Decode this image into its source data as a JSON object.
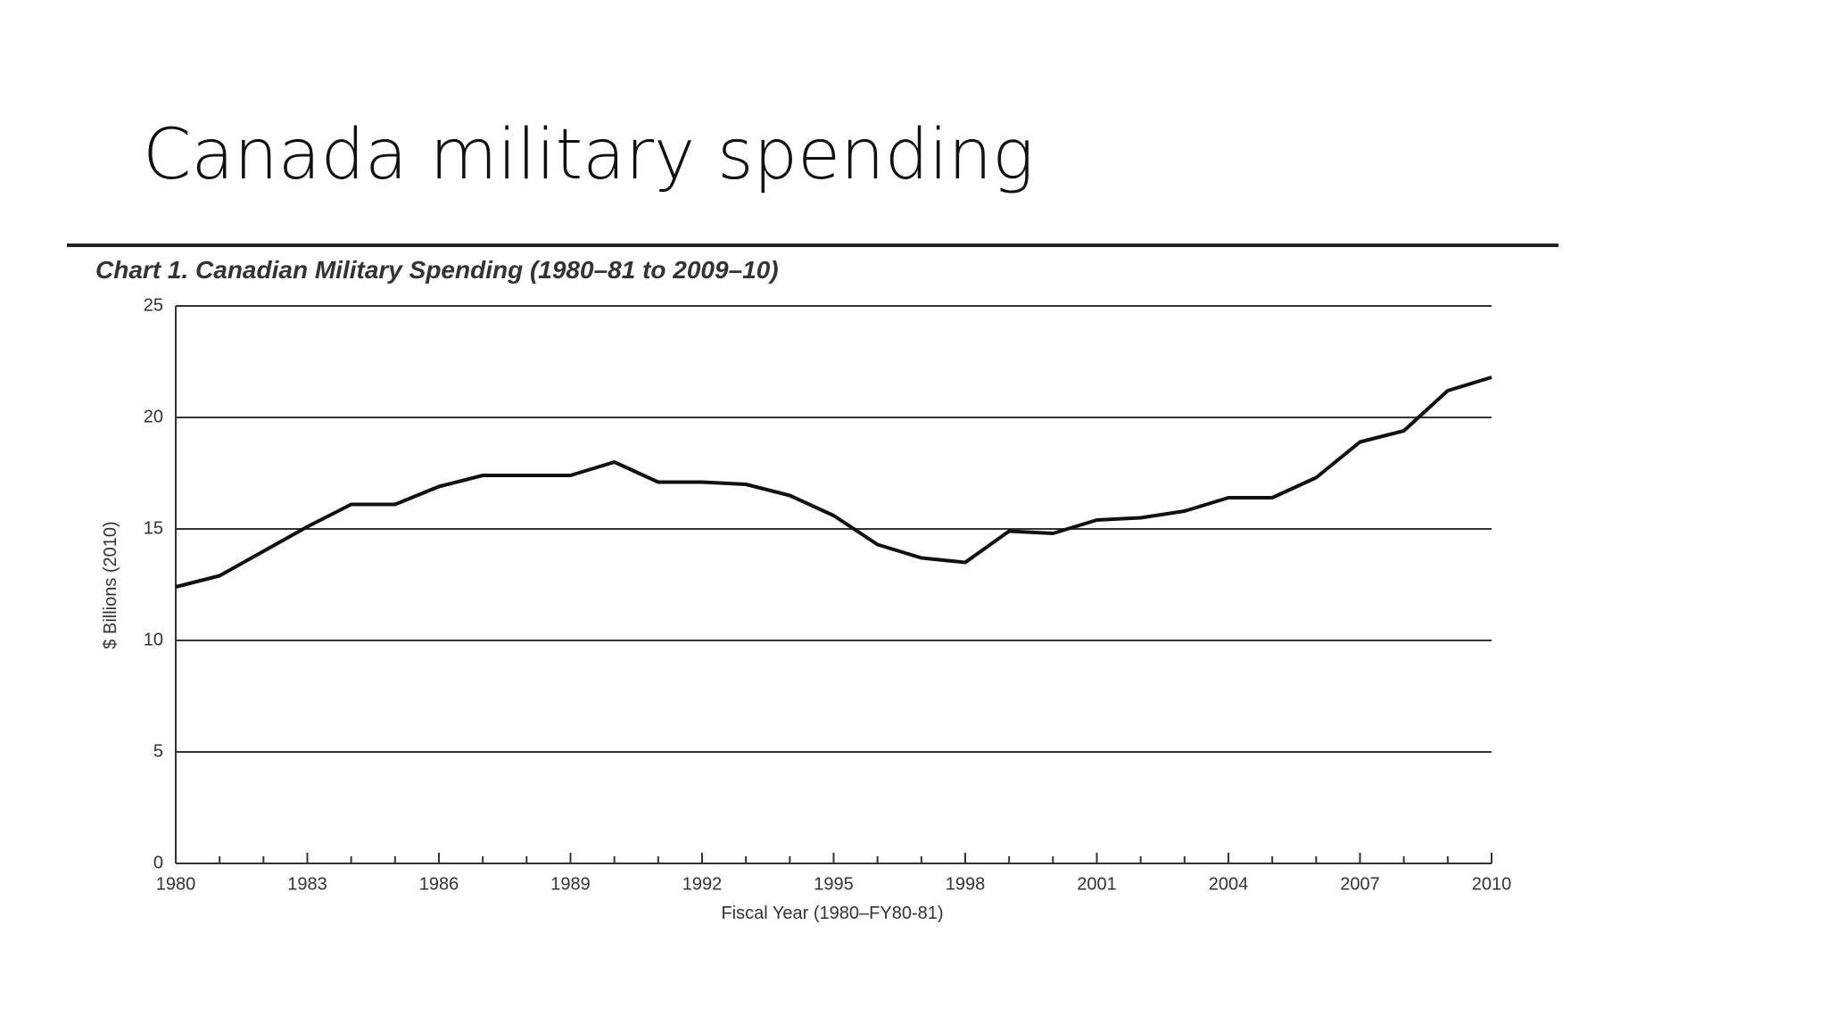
{
  "slide": {
    "title": "Canada military spending"
  },
  "chart_data": {
    "type": "line",
    "title": "Chart 1. Canadian Military Spending (1980–81 to 2009–10)",
    "y_label": "$ Billions (2010)",
    "x_label": "Fiscal Year (1980–FY80-81)",
    "x": [
      1980,
      1981,
      1982,
      1983,
      1984,
      1985,
      1986,
      1987,
      1988,
      1989,
      1990,
      1991,
      1992,
      1993,
      1994,
      1995,
      1996,
      1997,
      1998,
      1999,
      2000,
      2001,
      2002,
      2003,
      2004,
      2005,
      2006,
      2007,
      2008,
      2009,
      2010
    ],
    "values": [
      12.4,
      12.9,
      14.0,
      15.1,
      16.1,
      16.1,
      16.9,
      17.4,
      17.4,
      17.4,
      18.0,
      17.1,
      17.1,
      17.0,
      16.5,
      15.6,
      14.3,
      13.7,
      13.5,
      14.9,
      14.8,
      15.4,
      15.5,
      15.8,
      16.4,
      16.4,
      17.3,
      18.9,
      19.4,
      21.2,
      21.8
    ],
    "color": "#111111",
    "xlim": [
      1980,
      2010
    ],
    "xticks": [
      1980,
      1983,
      1986,
      1989,
      1992,
      1995,
      1998,
      2001,
      2004,
      2007,
      2010
    ],
    "ylim": [
      0,
      25
    ],
    "yticks": [
      0,
      5,
      10,
      15,
      20,
      25
    ],
    "grid": true
  }
}
